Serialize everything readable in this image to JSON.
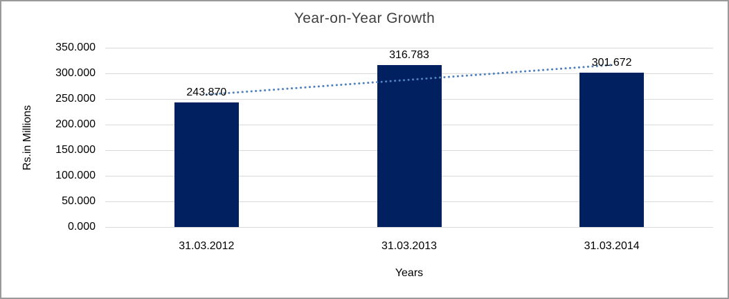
{
  "chart_data": {
    "type": "bar",
    "title": "Year-on-Year Growth",
    "xlabel": "Years",
    "ylabel": "Rs.in Millions",
    "categories": [
      "31.03.2012",
      "31.03.2013",
      "31.03.2014"
    ],
    "values": [
      243.87,
      316.783,
      301.672
    ],
    "value_labels": [
      "243.870",
      "316.783",
      "301.672"
    ],
    "y_tick_values": [
      0,
      50,
      100,
      150,
      200,
      250,
      300,
      350
    ],
    "y_tick_labels": [
      "0.000",
      "50.000",
      "100.000",
      "150.000",
      "200.000",
      "250.000",
      "300.000",
      "350.000"
    ],
    "ylim": [
      0,
      350
    ],
    "grid": true,
    "legend": "none",
    "colors": {
      "bar": "#002060",
      "trendline": "#4f81bd",
      "gridline": "#d9d9d9",
      "title_text": "#3f3f3f",
      "axis_text": "#000000",
      "frame_border": "#999999"
    },
    "trendline": {
      "type": "linear",
      "style": "dotted"
    }
  }
}
